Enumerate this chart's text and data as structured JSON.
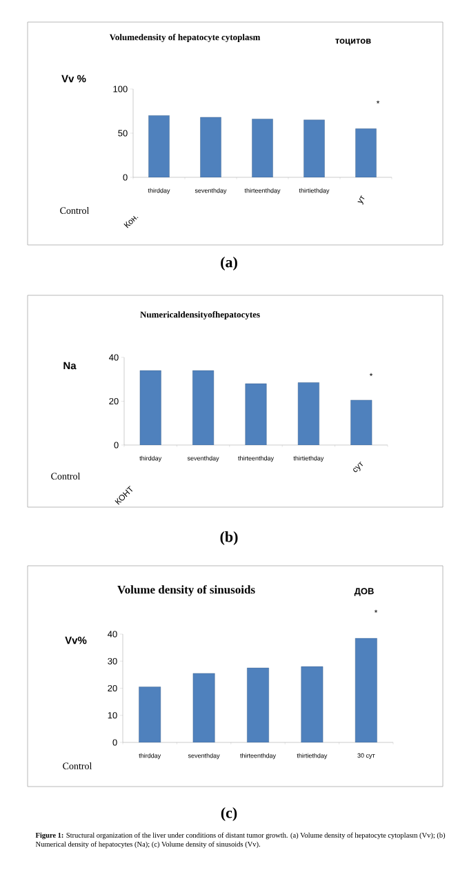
{
  "chart_data": [
    {
      "type": "bar",
      "title": "Volumedensity of hepatocyte cytoplasm",
      "ylabel": "Vv %",
      "categories": [
        "thirdday",
        "seventhday",
        "thirteenthday",
        "thirtiethday",
        null
      ],
      "values": [
        70,
        68,
        66,
        65,
        55
      ],
      "color": "#4f81bd",
      "ylim": [
        0,
        100
      ],
      "yticks": [
        0,
        50,
        100
      ],
      "annotations": [
        "тоцитов",
        "Control",
        "Кон.",
        "ут",
        "*",
        "(a)"
      ]
    },
    {
      "type": "bar",
      "title": "Numericaldensityofhepatocytes",
      "ylabel": "Na",
      "categories": [
        "thirdday",
        "seventhday",
        "thirteenthday",
        "thirtiethday",
        null
      ],
      "values": [
        34,
        34,
        28,
        28.5,
        20.5
      ],
      "color": "#4f81bd",
      "ylim": [
        0,
        40
      ],
      "yticks": [
        0,
        20,
        40
      ],
      "annotations": [
        "Control",
        "КОНТ",
        "сут",
        "*",
        "(b)"
      ]
    },
    {
      "type": "bar",
      "title": "Volume density of sinusoids",
      "ylabel": "Vv%",
      "categories": [
        "thirdday",
        "seventhday",
        "thirteenthday",
        "thirtiethday",
        "30 сут"
      ],
      "values": [
        20.5,
        25.5,
        27.5,
        28,
        38.5
      ],
      "color": "#4f81bd",
      "ylim": [
        0,
        40
      ],
      "yticks": [
        0,
        10,
        20,
        30,
        40
      ],
      "annotations": [
        "ДОВ",
        "Control",
        "*",
        "(c)",
        "**Figure 1:** Structural organization of the liver under conditions of distant tumor growth. (a) Volume density of hepatocyte cytoplasm (Vv); (b) Numerical density of hepatocytes (Na); (c) Volume density of sinusoids (Vv)."
      ]
    }
  ]
}
